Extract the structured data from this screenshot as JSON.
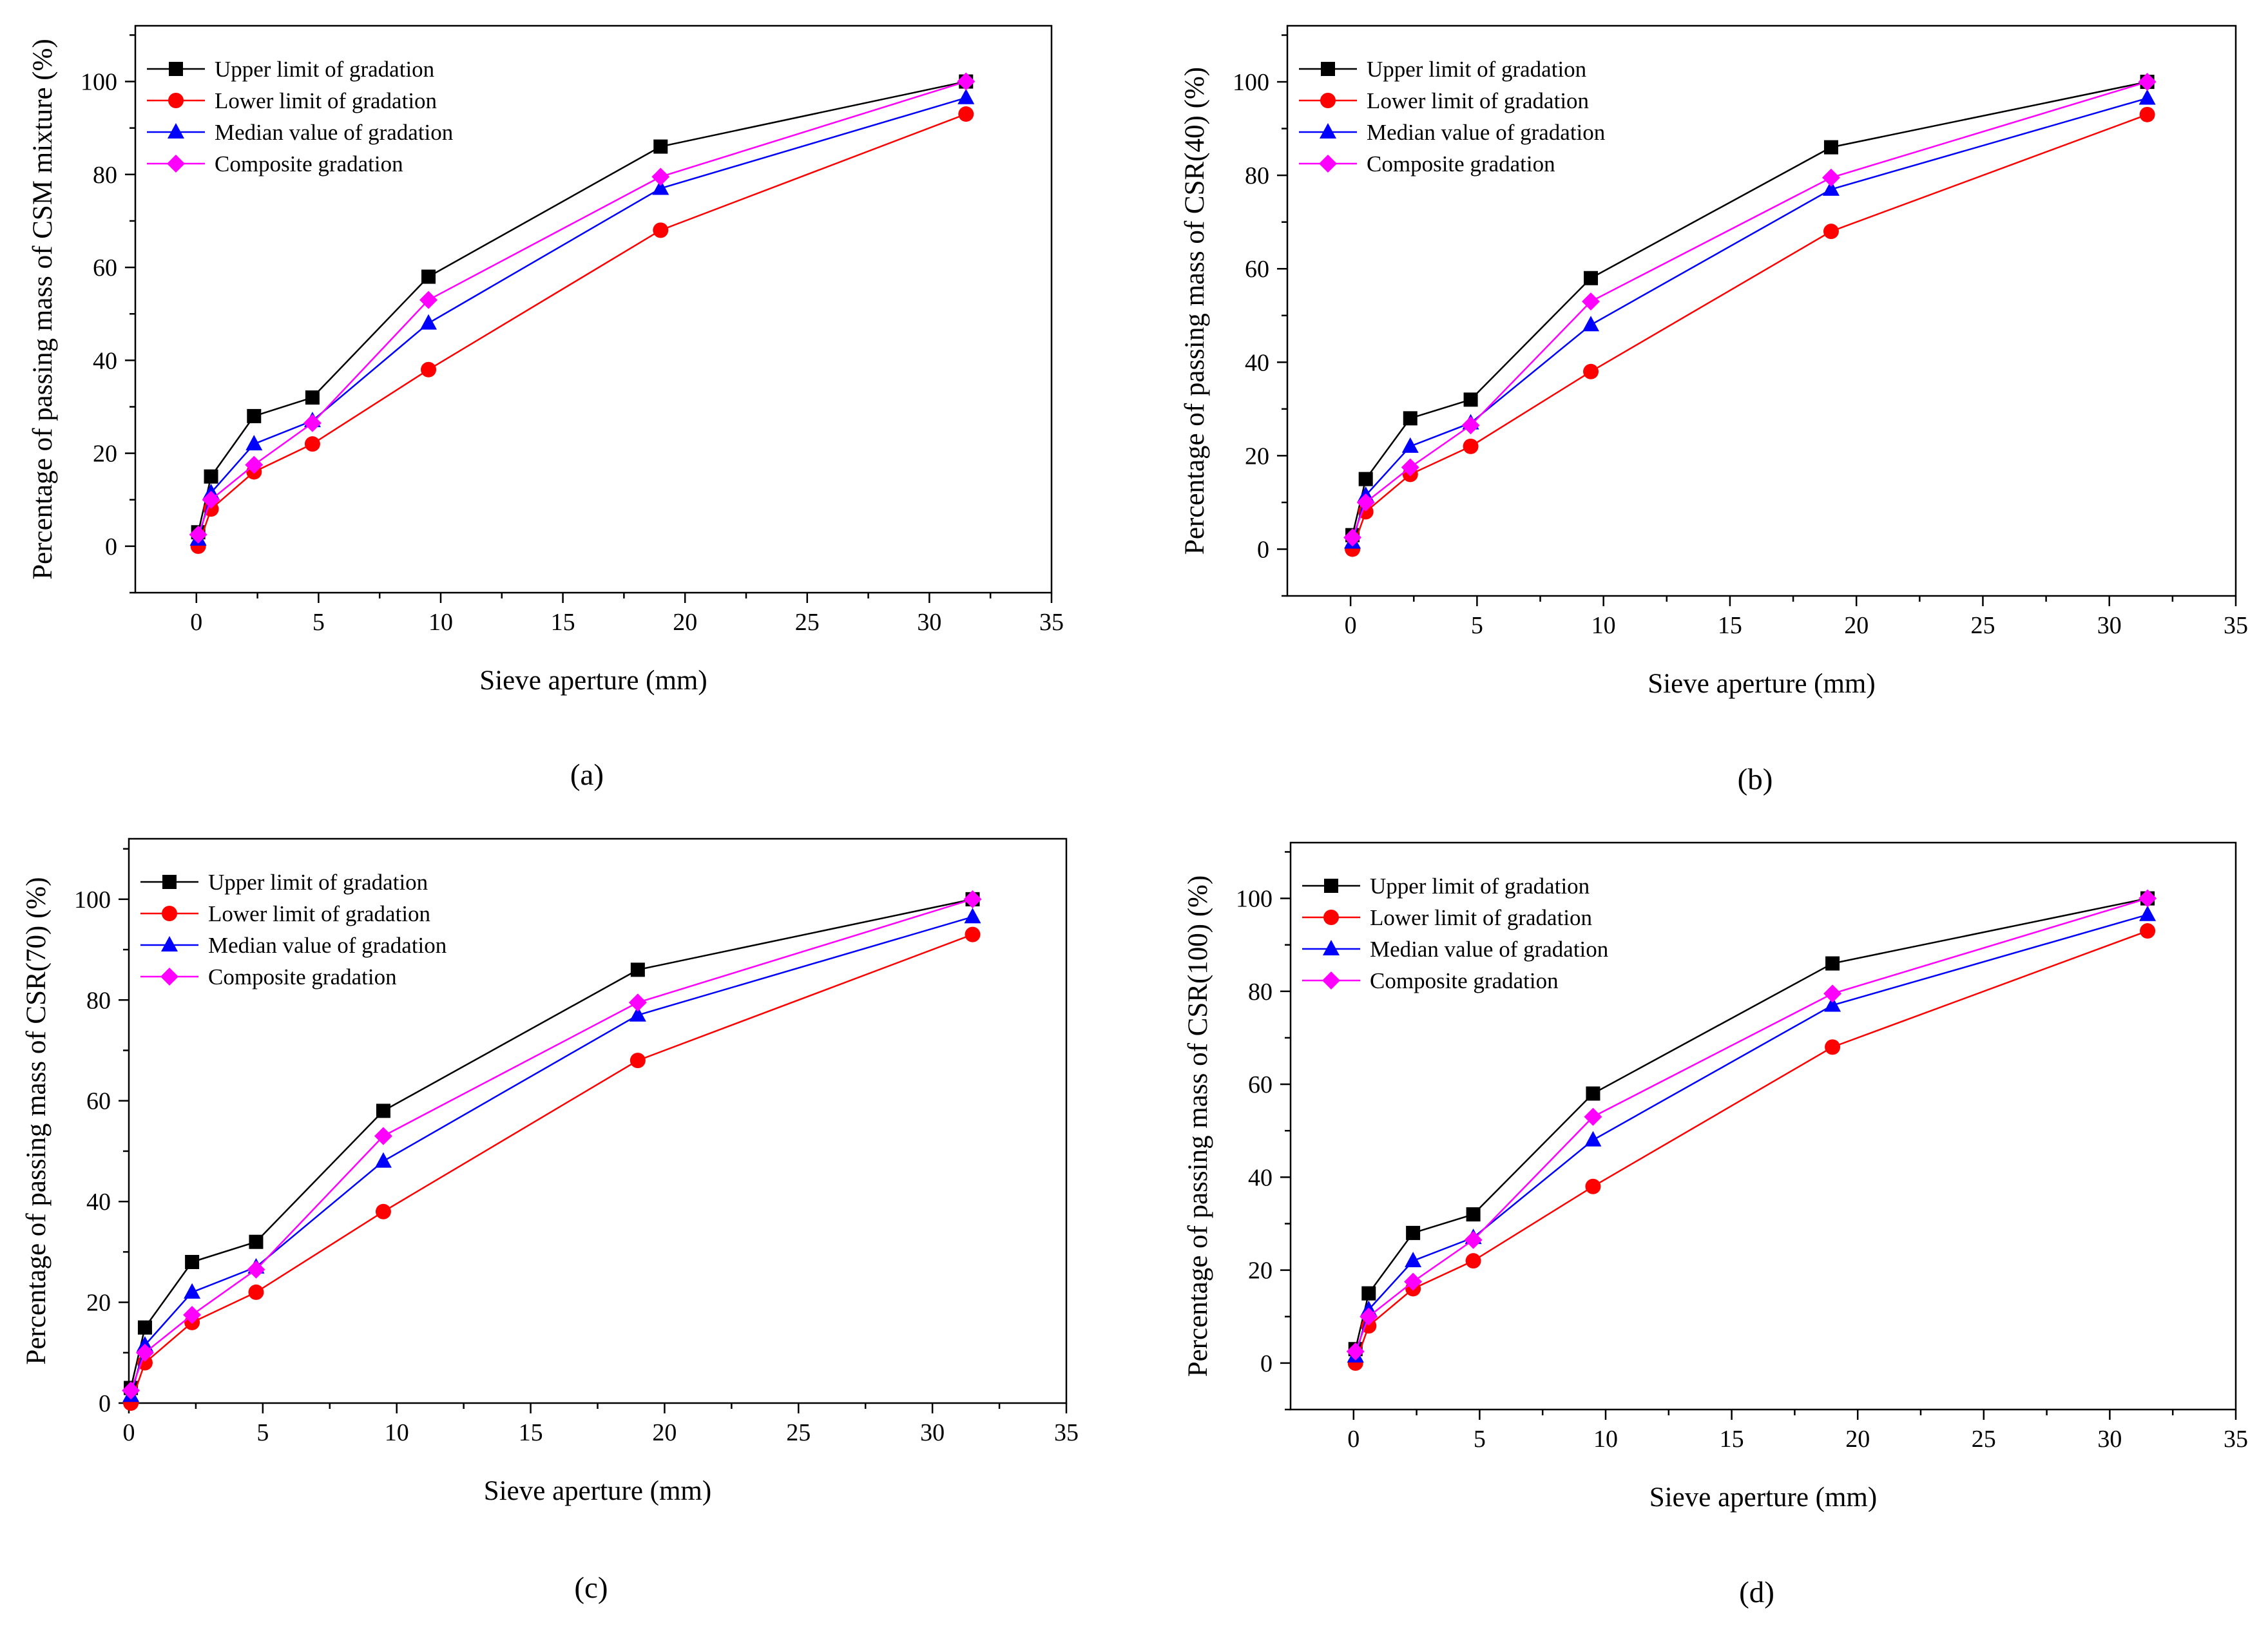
{
  "figure": {
    "panels": [
      "a",
      "b",
      "c",
      "d"
    ]
  },
  "chart_data": [
    {
      "id": "a",
      "type": "line",
      "caption": "(a)",
      "title": "",
      "xlabel": "Sieve aperture (mm)",
      "ylabel": "Percentage of passing mass of CSM mixture (%)",
      "xlim": [
        -2.5,
        35
      ],
      "ylim": [
        -10,
        112
      ],
      "xticks": [
        0,
        5,
        10,
        15,
        20,
        25,
        30,
        35
      ],
      "yticks": [
        0,
        20,
        40,
        60,
        80,
        100
      ],
      "x": [
        0.075,
        0.6,
        2.36,
        4.75,
        9.5,
        19,
        31.5
      ],
      "series": [
        {
          "name": "Upper limit of gradation",
          "color": "#000000",
          "marker": "square",
          "values": [
            3,
            15,
            28,
            32,
            58,
            86,
            100
          ]
        },
        {
          "name": "Lower limit of gradation",
          "color": "#ff0000",
          "marker": "circle",
          "values": [
            0,
            8,
            16,
            22,
            38,
            68,
            93
          ]
        },
        {
          "name": "Median value of gradation",
          "color": "#0000ff",
          "marker": "triangle",
          "values": [
            1.5,
            11.5,
            22,
            27,
            48,
            77,
            96.5
          ]
        },
        {
          "name": "Composite gradation",
          "color": "#ff00ff",
          "marker": "diamond",
          "values": [
            2.5,
            10,
            17.5,
            26.5,
            53,
            79.5,
            100
          ]
        }
      ],
      "legend": "top-left",
      "grid": false
    },
    {
      "id": "b",
      "type": "line",
      "caption": "(b)",
      "title": "",
      "xlabel": "Sieve aperture (mm)",
      "ylabel": "Percentage of passing mass of CSR(40) (%)",
      "xlim": [
        -2.5,
        35
      ],
      "ylim": [
        -10,
        112
      ],
      "xticks": [
        0,
        5,
        10,
        15,
        20,
        25,
        30,
        35
      ],
      "yticks": [
        0,
        20,
        40,
        60,
        80,
        100
      ],
      "x": [
        0.075,
        0.6,
        2.36,
        4.75,
        9.5,
        19,
        31.5
      ],
      "series": [
        {
          "name": "Upper limit of gradation",
          "color": "#000000",
          "marker": "square",
          "values": [
            3,
            15,
            28,
            32,
            58,
            86,
            100
          ]
        },
        {
          "name": "Lower limit of gradation",
          "color": "#ff0000",
          "marker": "circle",
          "values": [
            0,
            8,
            16,
            22,
            38,
            68,
            93
          ]
        },
        {
          "name": "Median value of gradation",
          "color": "#0000ff",
          "marker": "triangle",
          "values": [
            1.5,
            11.5,
            22,
            27,
            48,
            77,
            96.5
          ]
        },
        {
          "name": "Composite gradation",
          "color": "#ff00ff",
          "marker": "diamond",
          "values": [
            2.5,
            10,
            17.5,
            26.5,
            53,
            79.5,
            100
          ]
        }
      ],
      "legend": "top-left",
      "grid": false
    },
    {
      "id": "c",
      "type": "line",
      "caption": "(c)",
      "title": "",
      "xlabel": "Sieve aperture (mm)",
      "ylabel": "Percentage of passing mass of CSR(70) (%)",
      "xlim": [
        0,
        35
      ],
      "ylim": [
        0,
        112
      ],
      "xticks": [
        0,
        5,
        10,
        15,
        20,
        25,
        30,
        35
      ],
      "yticks": [
        0,
        20,
        40,
        60,
        80,
        100
      ],
      "x": [
        0.075,
        0.6,
        2.36,
        4.75,
        9.5,
        19,
        31.5
      ],
      "series": [
        {
          "name": "Upper limit of gradation",
          "color": "#000000",
          "marker": "square",
          "values": [
            3,
            15,
            28,
            32,
            58,
            86,
            100
          ]
        },
        {
          "name": "Lower limit of gradation",
          "color": "#ff0000",
          "marker": "circle",
          "values": [
            0,
            8,
            16,
            22,
            38,
            68,
            93
          ]
        },
        {
          "name": "Median value of gradation",
          "color": "#0000ff",
          "marker": "triangle",
          "values": [
            1.5,
            11.5,
            22,
            27,
            48,
            77,
            96.5
          ]
        },
        {
          "name": "Composite gradation",
          "color": "#ff00ff",
          "marker": "diamond",
          "values": [
            2.5,
            10,
            17.5,
            26.5,
            53,
            79.5,
            100
          ]
        }
      ],
      "legend": "top-left",
      "grid": false
    },
    {
      "id": "d",
      "type": "line",
      "caption": "(d)",
      "title": "",
      "xlabel": "Sieve aperture (mm)",
      "ylabel": "Percentage of passing mass of CSR(100) (%)",
      "xlim": [
        -2.5,
        35
      ],
      "ylim": [
        -10,
        112
      ],
      "xticks": [
        0,
        5,
        10,
        15,
        20,
        25,
        30,
        35
      ],
      "yticks": [
        0,
        20,
        40,
        60,
        80,
        100
      ],
      "x": [
        0.075,
        0.6,
        2.36,
        4.75,
        9.5,
        19,
        31.5
      ],
      "series": [
        {
          "name": "Upper limit of gradation",
          "color": "#000000",
          "marker": "square",
          "values": [
            3,
            15,
            28,
            32,
            58,
            86,
            100
          ]
        },
        {
          "name": "Lower limit of gradation",
          "color": "#ff0000",
          "marker": "circle",
          "values": [
            0,
            8,
            16,
            22,
            38,
            68,
            93
          ]
        },
        {
          "name": "Median value of gradation",
          "color": "#0000ff",
          "marker": "triangle",
          "values": [
            1.5,
            11.5,
            22,
            27,
            48,
            77,
            96.5
          ]
        },
        {
          "name": "Composite gradation",
          "color": "#ff00ff",
          "marker": "diamond",
          "values": [
            2.5,
            10,
            17.5,
            26.5,
            53,
            79.5,
            100
          ]
        }
      ],
      "legend": "top-left",
      "grid": false
    }
  ]
}
